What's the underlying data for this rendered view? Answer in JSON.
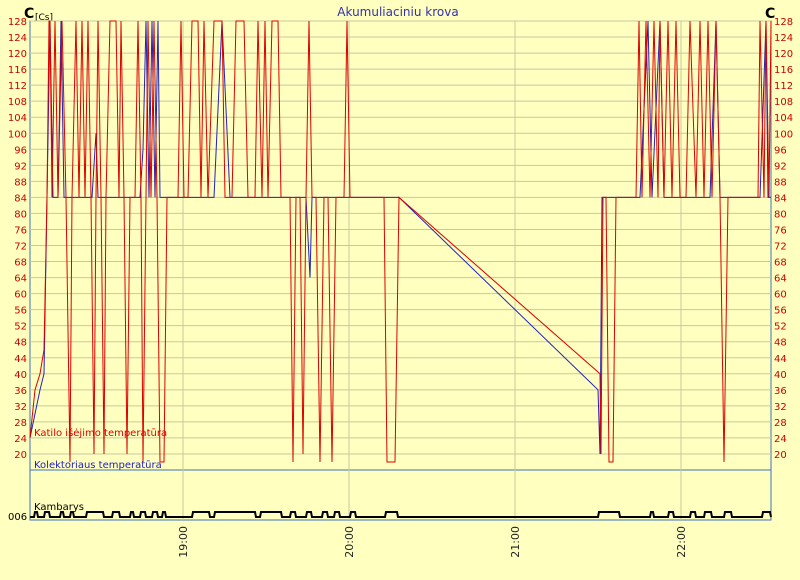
{
  "chart_data": {
    "type": "line",
    "title": "Akumuliaciniu krova",
    "ylabel_left": "C",
    "ylabel_left_unit": "[Cs]",
    "ylabel_right": "C",
    "y_ticks": [
      20,
      24,
      28,
      32,
      36,
      40,
      44,
      48,
      52,
      56,
      60,
      64,
      68,
      72,
      76,
      80,
      84,
      88,
      92,
      96,
      100,
      104,
      108,
      112,
      116,
      120,
      124,
      128
    ],
    "ylim": [
      16,
      128
    ],
    "x_ticks": [
      "19:00",
      "20:00",
      "21:00",
      "22:00"
    ],
    "series": [
      {
        "name": "Katilo išėjimo temperatūra",
        "color": "#dd0000"
      },
      {
        "name": "Kolektoriaus temperatūra",
        "color": "#2222bb"
      }
    ],
    "digital_label": "Kambarys",
    "digital_axis_label": "006",
    "grid": true
  }
}
